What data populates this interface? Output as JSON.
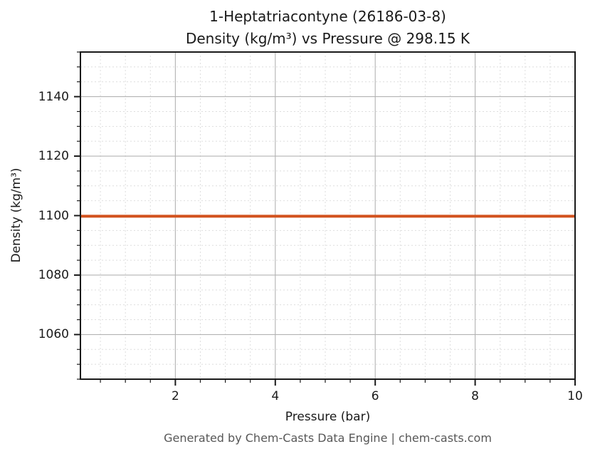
{
  "chart_data": {
    "type": "line",
    "title": "1-Heptatriacontyne (26186-03-8)",
    "subtitle": "Density (kg/m³) vs Pressure @ 298.15 K",
    "xlabel": "Pressure (bar)",
    "ylabel": "Density (kg/m³)",
    "xlim": [
      0.1,
      10
    ],
    "ylim": [
      1045,
      1155
    ],
    "xticks": [
      2,
      4,
      6,
      8,
      10
    ],
    "yticks": [
      1060,
      1080,
      1100,
      1120,
      1140
    ],
    "x_minor_step": 0.5,
    "y_minor_step": 5,
    "grid": {
      "major": "solid",
      "minor": "dotted",
      "major_color": "#b3b3b3",
      "minor_color": "#dedede"
    },
    "legend": "none",
    "series": [
      {
        "name": "Density",
        "color": "#d2521e",
        "x": [
          0.1,
          1,
          2,
          3,
          4,
          5,
          6,
          7,
          8,
          9,
          10
        ],
        "y": [
          1099.8,
          1099.8,
          1099.8,
          1099.8,
          1099.8,
          1099.8,
          1099.8,
          1099.8,
          1099.8,
          1099.8,
          1099.8
        ]
      }
    ]
  },
  "footer": {
    "text": "Generated by Chem-Casts Data Engine | chem-casts.com"
  }
}
